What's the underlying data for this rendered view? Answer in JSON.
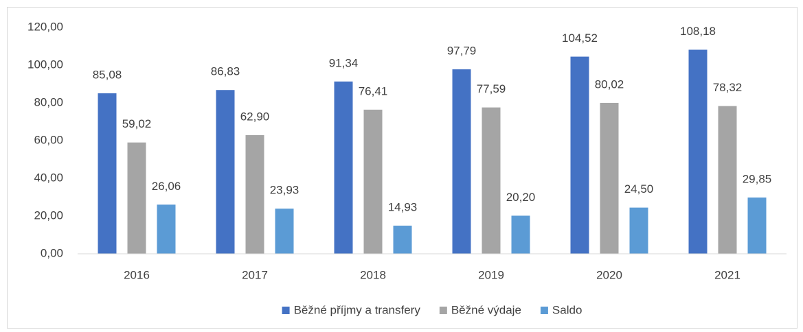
{
  "chart_data": {
    "type": "bar",
    "categories": [
      "2016",
      "2017",
      "2018",
      "2019",
      "2020",
      "2021"
    ],
    "series": [
      {
        "name": "Běžné příjmy a transfery",
        "color": "#4472c4",
        "values": [
          85.08,
          86.83,
          91.34,
          97.79,
          104.52,
          108.18
        ],
        "value_labels": [
          "85,08",
          "86,83",
          "91,34",
          "97,79",
          "104,52",
          "108,18"
        ]
      },
      {
        "name": "Běžné výdaje",
        "color": "#a5a5a5",
        "values": [
          59.02,
          62.9,
          76.41,
          77.59,
          80.02,
          78.32
        ],
        "value_labels": [
          "59,02",
          "62,90",
          "76,41",
          "77,59",
          "80,02",
          "78,32"
        ]
      },
      {
        "name": "Saldo",
        "color": "#5b9bd5",
        "values": [
          26.06,
          23.93,
          14.93,
          20.2,
          24.5,
          29.85
        ],
        "value_labels": [
          "26,06",
          "23,93",
          "14,93",
          "20,20",
          "24,50",
          "29,85"
        ]
      }
    ],
    "ylim": [
      0,
      120
    ],
    "yticks": [
      {
        "value": 0,
        "label": "0,00"
      },
      {
        "value": 20,
        "label": "20,00"
      },
      {
        "value": 40,
        "label": "40,00"
      },
      {
        "value": 60,
        "label": "60,00"
      },
      {
        "value": 80,
        "label": "80,00"
      },
      {
        "value": 100,
        "label": "100,00"
      },
      {
        "value": 120,
        "label": "120,00"
      }
    ],
    "grid": false,
    "legend": "bottom"
  }
}
